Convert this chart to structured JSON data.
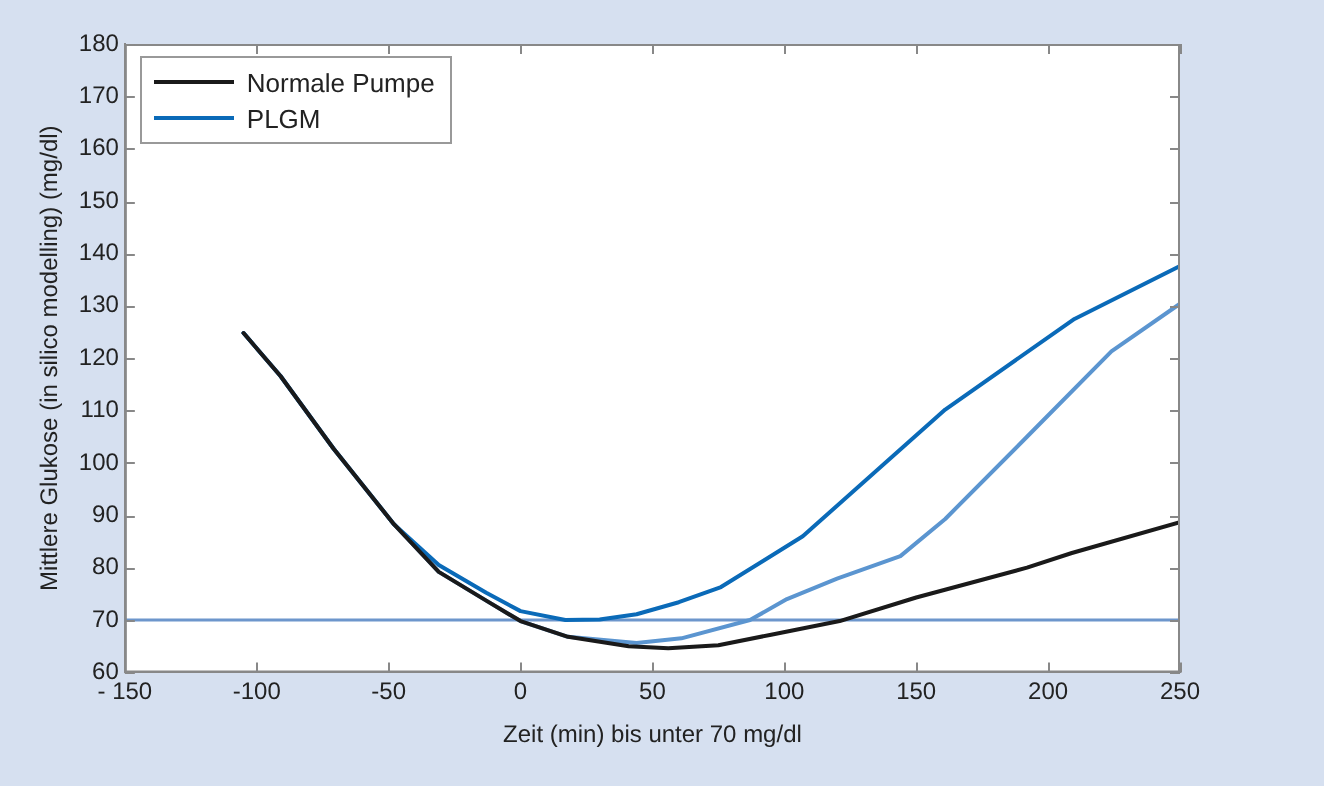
{
  "chart_data": {
    "type": "line",
    "xlabel": "Zeit (min) bis unter 70 mg/dl",
    "ylabel": "Mittlere Glukose (in silico modelling) (mg/dl)",
    "xlim": [
      -150,
      250
    ],
    "xticks": [
      {
        "value": -150,
        "label": "- 150"
      },
      -100,
      -50,
      0,
      50,
      100,
      150,
      200,
      250
    ],
    "ylim": [
      60,
      180
    ],
    "yticks": [
      60,
      70,
      80,
      90,
      100,
      110,
      120,
      130,
      140,
      150,
      160,
      170,
      180
    ],
    "grid": false,
    "legend": "top left",
    "marker": "none",
    "line_style": "solid",
    "ref_lines": [
      {
        "axis": "y",
        "value": 70,
        "color": "#6d96cc"
      }
    ],
    "series": [
      {
        "name": "Normale Pumpe",
        "color": "#1a1a1a",
        "x": [
          -105,
          -91,
          -71,
          -48,
          -31,
          -13,
          0,
          18,
          41,
          56,
          75,
          95,
          121,
          150,
          192,
          209,
          250
        ],
        "values": [
          124.8,
          116.6,
          102.8,
          88.3,
          79.2,
          73.7,
          69.8,
          66.8,
          65,
          64.6,
          65.2,
          67.2,
          69.8,
          74.3,
          80,
          82.8,
          88.7
        ]
      },
      {
        "name": "PLGM",
        "color": "#0a6ab8",
        "x": [
          -105,
          -91,
          -71,
          -48,
          -31,
          -13,
          0,
          17,
          30,
          44,
          60,
          76,
          107,
          161,
          210,
          250
        ],
        "values": [
          124.8,
          116.6,
          102.8,
          88.3,
          80.5,
          75.2,
          71.7,
          70,
          70.1,
          71.1,
          73.4,
          76.3,
          86,
          110.2,
          127.5,
          137.6
        ]
      },
      {
        "color": "#5b95d0",
        "x": [
          -105,
          -91,
          -71,
          -48,
          -31,
          -13,
          0,
          18,
          44,
          61,
          87,
          101,
          120,
          144,
          161,
          192,
          224,
          250
        ],
        "values": [
          124.8,
          116.6,
          102.8,
          88.3,
          79.2,
          73.7,
          69.8,
          66.8,
          65.6,
          66.5,
          70,
          74,
          77.9,
          82.2,
          89.3,
          105,
          121.3,
          130.4
        ]
      }
    ]
  }
}
